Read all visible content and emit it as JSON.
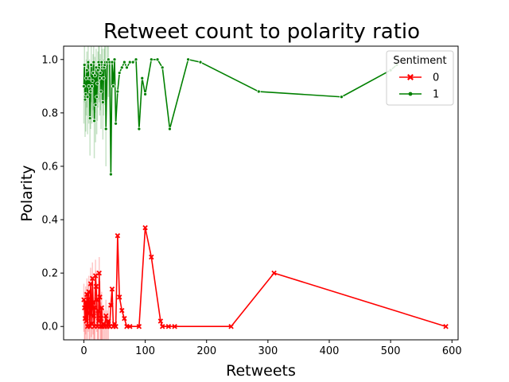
{
  "chart_data": {
    "type": "line",
    "title": "Retweet count to polarity ratio",
    "xlabel": "Retweets",
    "ylabel": "Polarity",
    "xlim": [
      -33,
      610
    ],
    "ylim": [
      -0.05,
      1.05
    ],
    "xticks": [
      "0",
      "100",
      "200",
      "300",
      "400",
      "500",
      "600"
    ],
    "xtick_values": [
      0,
      100,
      200,
      300,
      400,
      500,
      600
    ],
    "yticks": [
      "0.0",
      "0.2",
      "0.4",
      "0.6",
      "0.8",
      "1.0"
    ],
    "ytick_values": [
      0,
      0.2,
      0.4,
      0.6,
      0.8,
      1.0
    ],
    "grid": false,
    "legend": {
      "title": "Sentiment",
      "placement": "top-right"
    },
    "series": [
      {
        "name": "0",
        "color": "#ff0000",
        "marker": "x",
        "x": [
          0,
          1,
          2,
          3,
          4,
          5,
          6,
          7,
          8,
          9,
          10,
          11,
          12,
          13,
          14,
          15,
          16,
          17,
          18,
          19,
          20,
          21,
          22,
          23,
          24,
          25,
          26,
          27,
          28,
          29,
          30,
          32,
          34,
          36,
          38,
          40,
          42,
          44,
          46,
          48,
          50,
          52,
          55,
          58,
          62,
          66,
          70,
          75,
          90,
          100,
          110,
          125,
          128,
          138,
          148,
          240,
          310,
          590
        ],
        "y": [
          0.1,
          0.07,
          0.03,
          0.09,
          0.02,
          0.12,
          0.0,
          0.1,
          0.13,
          0.05,
          0.0,
          0.16,
          0.08,
          0.01,
          0.18,
          0.09,
          0.04,
          0.0,
          0.07,
          0.19,
          0.15,
          0.1,
          0.0,
          0.06,
          0.02,
          0.2,
          0.11,
          0.0,
          0.03,
          0.07,
          0.0,
          0.01,
          0.0,
          0.04,
          0.0,
          0.02,
          0.0,
          0.08,
          0.14,
          0.0,
          0.01,
          0.0,
          0.34,
          0.11,
          0.06,
          0.03,
          0.0,
          0.0,
          0.0,
          0.37,
          0.26,
          0.02,
          0.0,
          0.0,
          0.0,
          0.0,
          0.2,
          0.0
        ]
      },
      {
        "name": "1",
        "color": "#008000",
        "marker": "o",
        "x": [
          0,
          1,
          2,
          3,
          4,
          5,
          6,
          7,
          8,
          9,
          10,
          11,
          12,
          13,
          14,
          15,
          16,
          17,
          18,
          19,
          20,
          21,
          22,
          23,
          24,
          25,
          26,
          27,
          28,
          29,
          30,
          31,
          32,
          33,
          34,
          35,
          36,
          38,
          40,
          42,
          44,
          46,
          48,
          50,
          52,
          55,
          58,
          62,
          66,
          70,
          75,
          80,
          85,
          90,
          95,
          100,
          110,
          120,
          128,
          140,
          170,
          190,
          285,
          420,
          500,
          510
        ],
        "y": [
          0.9,
          0.98,
          0.85,
          0.87,
          0.93,
          0.96,
          0.86,
          0.99,
          0.9,
          0.93,
          0.78,
          0.88,
          0.98,
          0.9,
          0.92,
          0.95,
          0.99,
          0.77,
          0.94,
          0.83,
          0.97,
          0.86,
          0.91,
          0.96,
          0.99,
          0.98,
          0.93,
          0.95,
          0.88,
          0.99,
          0.97,
          0.84,
          0.93,
          0.97,
          0.98,
          0.99,
          0.74,
          0.99,
          1.0,
          0.99,
          0.57,
          0.99,
          0.9,
          1.0,
          0.76,
          0.88,
          0.95,
          0.97,
          0.99,
          0.97,
          0.99,
          0.99,
          1.0,
          0.74,
          0.93,
          0.87,
          1.0,
          1.0,
          0.97,
          0.74,
          1.0,
          0.99,
          0.88,
          0.86,
          0.96,
          0.98
        ]
      }
    ]
  }
}
